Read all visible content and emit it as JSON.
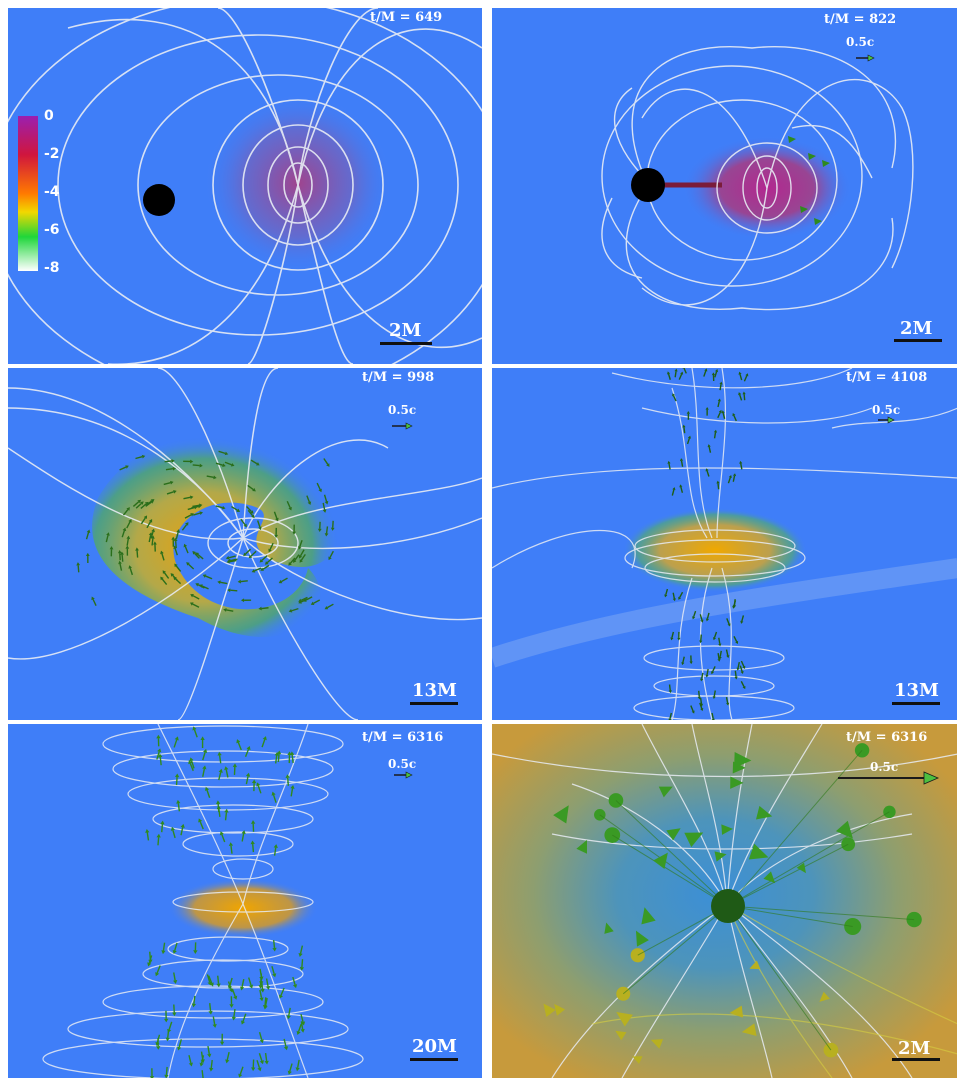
{
  "colorbar": {
    "ticks": [
      "0",
      "-2",
      "-4",
      "-6",
      "-8"
    ],
    "gradient": [
      "#9b1fb0",
      "#d0163d",
      "#ff7a00",
      "#f2d800",
      "#1fd63a",
      "#ffffff"
    ]
  },
  "panels": [
    {
      "time": "t/M = 649",
      "velocity": "",
      "scale": "2M"
    },
    {
      "time": "t/M = 822",
      "velocity": "0.5c",
      "scale": "2M"
    },
    {
      "time": "t/M = 998",
      "velocity": "0.5c",
      "scale": "13M"
    },
    {
      "time": "t/M = 4108",
      "velocity": "0.5c",
      "scale": "13M"
    },
    {
      "time": "t/M = 6316",
      "velocity": "0.5c",
      "scale": "20M"
    },
    {
      "time": "t/M = 6316",
      "velocity": "0.5c",
      "scale": "2M"
    }
  ],
  "colors": {
    "background": "#3f7ef8",
    "field_lines": "#e8ecf4",
    "vectors": "#2f8a1e",
    "black_hole": "#000000"
  }
}
